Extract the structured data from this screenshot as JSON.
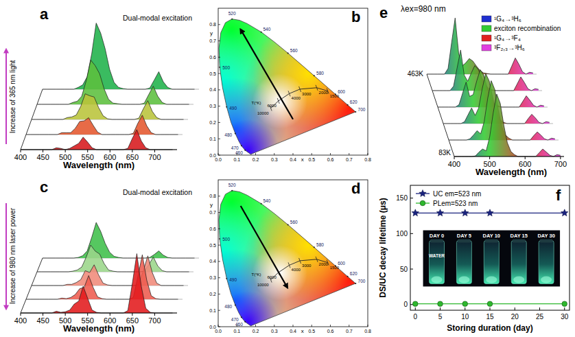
{
  "chart_data": [
    {
      "type": "waterfall",
      "panel": "a",
      "annotation": "Dual-modal excitation",
      "arrow_label": "Increase of 365 nm light",
      "x_label": "Wavelength (nm)",
      "xlim": [
        400,
        750
      ],
      "xticks": [
        400,
        450,
        500,
        550,
        600,
        650,
        700
      ],
      "ylim": [
        0,
        110
      ],
      "tick_labels": "x",
      "x": [
        400,
        410,
        420,
        430,
        440,
        450,
        460,
        470,
        480,
        490,
        500,
        510,
        520,
        530,
        540,
        550,
        560,
        570,
        580,
        590,
        600,
        610,
        620,
        630,
        640,
        650,
        660,
        670,
        680,
        690,
        700,
        710,
        720,
        730,
        740
      ],
      "series": [
        {
          "color": "#d7191c",
          "values": [
            0,
            0,
            0,
            0,
            0,
            0,
            0,
            0,
            3,
            2,
            0,
            2,
            6,
            10,
            20,
            12,
            3,
            0,
            0,
            0,
            0,
            0,
            0,
            0,
            2,
            18,
            32,
            14,
            3,
            0,
            0,
            0,
            0,
            0,
            0
          ]
        },
        {
          "color": "#e4572e",
          "values": [
            0,
            0,
            0,
            0,
            0,
            0,
            0,
            0,
            3,
            3,
            3,
            10,
            21,
            22,
            27,
            15,
            4,
            0,
            0,
            0,
            0,
            0,
            0,
            0,
            2,
            18,
            31,
            14,
            3,
            0,
            0,
            0,
            0,
            0,
            0
          ]
        },
        {
          "color": "#b9c43a",
          "values": [
            0,
            0,
            0,
            0,
            0,
            0,
            0,
            0,
            3,
            4,
            7,
            21,
            41,
            38,
            36,
            19,
            6,
            1,
            0,
            0,
            0,
            0,
            0,
            0,
            2,
            17,
            30,
            13,
            3,
            0,
            0,
            0,
            0,
            0,
            0
          ]
        },
        {
          "color": "#5cbf3e",
          "values": [
            0,
            0,
            0,
            0,
            0,
            0,
            0,
            0,
            3,
            5,
            13,
            38,
            71,
            62,
            49,
            25,
            8,
            2,
            1,
            0,
            0,
            0,
            0,
            0,
            2,
            16,
            29,
            13,
            3,
            0,
            0,
            0,
            0,
            0,
            0
          ]
        },
        {
          "color": "#1fb24a",
          "values": [
            0,
            0,
            0,
            0,
            0,
            0,
            0,
            0,
            3,
            7,
            20,
            57,
            106,
            90,
            65,
            32,
            11,
            3,
            1,
            0,
            0,
            0,
            0,
            0,
            2,
            15,
            28,
            12,
            3,
            0,
            0,
            0,
            0,
            0,
            0
          ]
        }
      ]
    },
    {
      "type": "chromaticity",
      "panel": "b",
      "x_label": "x",
      "y_label": "y",
      "xlim": [
        0,
        0.8
      ],
      "ylim": [
        0,
        0.9
      ],
      "xticks": [
        {
          "value": 0,
          "label": "0.0"
        },
        0.1,
        0.2,
        0.3,
        0.4,
        0.5,
        0.6,
        0.7,
        0.8
      ],
      "yticks": [
        {
          "value": 0,
          "label": "0.0"
        },
        0.1,
        0.2,
        0.3,
        0.4,
        0.5,
        0.6,
        0.7,
        0.8
      ],
      "locus_labels": [
        {
          "label": "460",
          "x": 0.144,
          "y": 0.03
        },
        {
          "label": "470",
          "x": 0.124,
          "y": 0.058
        },
        {
          "label": "480",
          "x": 0.091,
          "y": 0.133
        },
        {
          "label": "490",
          "x": 0.045,
          "y": 0.295
        },
        {
          "label": "500",
          "x": 0.008,
          "y": 0.538
        },
        {
          "label": "520",
          "x": 0.074,
          "y": 0.834
        },
        {
          "label": "540",
          "x": 0.23,
          "y": 0.754
        },
        {
          "label": "560",
          "x": 0.373,
          "y": 0.625
        },
        {
          "label": "580",
          "x": 0.513,
          "y": 0.487
        },
        {
          "label": "600",
          "x": 0.627,
          "y": 0.373
        },
        {
          "label": "620",
          "x": 0.692,
          "y": 0.308
        },
        {
          "label": "700",
          "x": 0.735,
          "y": 0.265
        }
      ],
      "planckian": {
        "title": "T(°K)",
        "points": [
          {
            "label": "10000",
            "x": 0.281,
            "y": 0.288
          },
          {
            "label": "6000",
            "x": 0.322,
            "y": 0.332
          },
          {
            "label": "4000",
            "x": 0.38,
            "y": 0.377
          },
          {
            "label": "3000",
            "x": 0.437,
            "y": 0.404
          },
          {
            "label": "2000",
            "x": 0.527,
            "y": 0.413
          },
          {
            "label": "1500",
            "x": 0.586,
            "y": 0.393
          }
        ]
      },
      "arrow": {
        "from": [
          0.4,
          0.22
        ],
        "to": [
          0.12,
          0.77
        ]
      }
    },
    {
      "type": "waterfall",
      "panel": "c",
      "annotation": "Dual-modal excitation",
      "arrow_label": "Increase of 980 nm laser power",
      "x_label": "Wavelength (nm)",
      "xlim": [
        400,
        750
      ],
      "xticks": [
        400,
        450,
        500,
        550,
        600,
        650,
        700
      ],
      "ylim": [
        0,
        110
      ],
      "tick_labels": "x",
      "x": [
        400,
        410,
        420,
        430,
        440,
        450,
        460,
        470,
        480,
        490,
        500,
        510,
        520,
        530,
        540,
        550,
        560,
        570,
        580,
        590,
        600,
        610,
        620,
        630,
        640,
        650,
        660,
        670,
        680,
        690,
        700,
        710,
        720,
        730,
        740
      ],
      "series": [
        {
          "color": "#e31a1c",
          "values": [
            0,
            0,
            0,
            0,
            0,
            0,
            0,
            0,
            3,
            1,
            2,
            5,
            15,
            20,
            45,
            25,
            5,
            1,
            0,
            0,
            0,
            0,
            0,
            0,
            4,
            50,
            100,
            45,
            8,
            1,
            0,
            0,
            0,
            0,
            0
          ]
        },
        {
          "color": "#ee5b4f",
          "values": [
            0,
            0,
            0,
            0,
            0,
            0,
            0,
            0,
            2,
            1,
            3,
            8,
            18,
            20,
            40,
            20,
            4,
            1,
            0,
            0,
            0,
            0,
            0,
            0,
            3,
            38,
            75,
            32,
            6,
            1,
            0,
            0,
            0,
            0,
            0
          ]
        },
        {
          "color": "#f08a7a",
          "values": [
            0,
            0,
            0,
            0,
            0,
            0,
            0,
            0,
            2,
            2,
            5,
            10,
            25,
            22,
            35,
            18,
            4,
            1,
            0,
            0,
            0,
            0,
            0,
            0,
            2,
            25,
            50,
            22,
            4,
            0,
            0,
            0,
            0,
            0,
            0
          ]
        },
        {
          "color": "#9bd68a",
          "values": [
            0,
            0,
            0,
            0,
            0,
            0,
            0,
            0,
            1,
            3,
            8,
            25,
            45,
            35,
            30,
            14,
            3,
            1,
            0,
            0,
            0,
            0,
            0,
            0,
            1,
            12,
            25,
            10,
            2,
            0,
            0,
            0,
            0,
            0,
            0
          ]
        },
        {
          "color": "#3fbf4a",
          "values": [
            0,
            0,
            0,
            0,
            0,
            0,
            0,
            0,
            1,
            4,
            12,
            35,
            60,
            45,
            25,
            10,
            3,
            1,
            0,
            0,
            0,
            0,
            0,
            0,
            1,
            6,
            12,
            5,
            1,
            0,
            0,
            0,
            0,
            0,
            0
          ]
        }
      ]
    },
    {
      "type": "chromaticity",
      "panel": "d",
      "x_label": "x",
      "y_label": "y",
      "xlim": [
        0,
        0.8
      ],
      "ylim": [
        0,
        0.9
      ],
      "xticks": [
        {
          "value": 0,
          "label": "0.0"
        },
        0.1,
        0.2,
        0.3,
        0.4,
        0.5,
        0.6,
        0.7,
        0.8
      ],
      "yticks": [
        {
          "value": 0,
          "label": "0.0"
        },
        0.1,
        0.2,
        0.3,
        0.4,
        0.5,
        0.6,
        0.7,
        0.8
      ],
      "locus_labels": [
        {
          "label": "460",
          "x": 0.144,
          "y": 0.03
        },
        {
          "label": "470",
          "x": 0.124,
          "y": 0.058
        },
        {
          "label": "480",
          "x": 0.091,
          "y": 0.133
        },
        {
          "label": "490",
          "x": 0.045,
          "y": 0.295
        },
        {
          "label": "500",
          "x": 0.008,
          "y": 0.538
        },
        {
          "label": "520",
          "x": 0.074,
          "y": 0.834
        },
        {
          "label": "540",
          "x": 0.23,
          "y": 0.754
        },
        {
          "label": "560",
          "x": 0.373,
          "y": 0.625
        },
        {
          "label": "580",
          "x": 0.513,
          "y": 0.487
        },
        {
          "label": "600",
          "x": 0.627,
          "y": 0.373
        },
        {
          "label": "620",
          "x": 0.692,
          "y": 0.308
        },
        {
          "label": "700",
          "x": 0.735,
          "y": 0.265
        }
      ],
      "planckian": {
        "title": "T(°K)",
        "points": [
          {
            "label": "10000",
            "x": 0.281,
            "y": 0.288
          },
          {
            "label": "6000",
            "x": 0.322,
            "y": 0.332
          },
          {
            "label": "4000",
            "x": 0.38,
            "y": 0.377
          },
          {
            "label": "3000",
            "x": 0.437,
            "y": 0.404
          },
          {
            "label": "2000",
            "x": 0.527,
            "y": 0.413
          },
          {
            "label": "1500",
            "x": 0.586,
            "y": 0.393
          }
        ]
      },
      "arrow": {
        "from": [
          0.12,
          0.74
        ],
        "to": [
          0.37,
          0.24
        ]
      }
    },
    {
      "type": "waterfall",
      "panel": "e",
      "title": "λex=980 nm",
      "x_label": "Wavelength (nm)",
      "xlim": [
        400,
        710
      ],
      "xticks": [
        400,
        500,
        600,
        700
      ],
      "ylim": [
        0,
        110
      ],
      "tick_labels": "x",
      "depth_labels": [
        "83K",
        "463K"
      ],
      "legend": "top-right",
      "legend_items": [
        {
          "name": "¹G₄→³H₆",
          "color": "#1f2fd0"
        },
        {
          "name": "exciton recombination",
          "color": "#33cc33"
        },
        {
          "name": "¹G₄→³F₄",
          "color": "#e02020"
        },
        {
          "name": "³F₂,₃→³H₆",
          "color": "#e040e0"
        }
      ],
      "x": [
        400,
        410,
        420,
        430,
        440,
        450,
        460,
        470,
        480,
        490,
        500,
        510,
        520,
        530,
        540,
        550,
        560,
        570,
        580,
        590,
        600,
        610,
        620,
        630,
        640,
        650,
        660,
        670,
        680,
        690,
        700
      ],
      "series": [
        {
          "values": [
            0,
            0,
            0,
            0,
            0,
            0,
            1,
            7,
            12,
            9,
            31,
            70,
            100,
            85,
            50,
            22,
            8,
            3,
            0,
            0,
            0,
            0,
            0,
            0,
            6,
            12,
            7,
            2,
            0,
            3,
            2
          ]
        },
        {
          "values": [
            0,
            0,
            0,
            0,
            0,
            0,
            2,
            8,
            15,
            10,
            29,
            67,
            95,
            81,
            48,
            21,
            8,
            3,
            0,
            0,
            0,
            0,
            0,
            0,
            7,
            13,
            8,
            2,
            0,
            3,
            2
          ]
        },
        {
          "values": [
            0,
            0,
            0,
            0,
            0,
            0,
            3,
            14,
            25,
            13,
            25,
            56,
            80,
            68,
            40,
            18,
            6,
            2,
            0,
            0,
            0,
            0,
            0,
            0,
            8,
            15,
            9,
            2,
            0,
            3,
            2
          ]
        },
        {
          "values": [
            0,
            0,
            0,
            0,
            0,
            0,
            4,
            22,
            40,
            17,
            20,
            42,
            60,
            51,
            30,
            13,
            5,
            2,
            0,
            0,
            0,
            0,
            0,
            0,
            9,
            18,
            11,
            3,
            0,
            3,
            2
          ]
        },
        {
          "values": [
            0,
            0,
            0,
            0,
            0,
            0,
            7,
            36,
            65,
            25,
            15,
            28,
            40,
            34,
            20,
            9,
            3,
            1,
            0,
            0,
            0,
            0,
            0,
            0,
            11,
            22,
            13,
            3,
            0,
            3,
            2
          ]
        },
        {
          "values": [
            0,
            0,
            0,
            0,
            0,
            0,
            9,
            50,
            90,
            33,
            13,
            18,
            25,
            21,
            13,
            6,
            2,
            1,
            0,
            0,
            0,
            0,
            0,
            0,
            13,
            26,
            16,
            4,
            0,
            3,
            2
          ]
        }
      ]
    },
    {
      "type": "line",
      "panel": "f",
      "x_label": "Storing duration (day)",
      "y_label": "DS/UC decay lifetime (μs)",
      "x": [
        0,
        5,
        10,
        15,
        30
      ],
      "xlim": [
        -1,
        31
      ],
      "xticks": [
        0,
        5,
        10,
        15,
        20,
        25,
        30
      ],
      "ylim": [
        -8,
        168
      ],
      "yticks": [
        0,
        50,
        100,
        150
      ],
      "grid": false,
      "legend": "top-left",
      "series": [
        {
          "name": "UC em=523 nm",
          "color": "#1a237e",
          "marker": "star",
          "values": [
            129,
            129,
            129,
            129,
            129
          ]
        },
        {
          "name": "PLem=523 nm",
          "color": "#2eb82e",
          "marker": "circle",
          "values": [
            1,
            1,
            1,
            1,
            1
          ]
        }
      ],
      "inset": {
        "labels": [
          "DAY 0",
          "DAY 5",
          "DAY 10",
          "DAY 15",
          "DAY 30"
        ],
        "note": "WATER"
      }
    }
  ]
}
